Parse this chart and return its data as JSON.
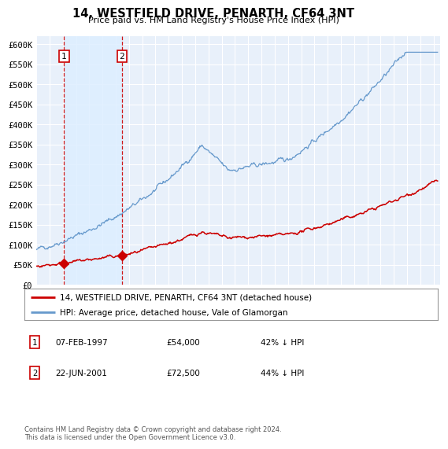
{
  "title": "14, WESTFIELD DRIVE, PENARTH, CF64 3NT",
  "subtitle": "Price paid vs. HM Land Registry's House Price Index (HPI)",
  "ylabel_ticks": [
    "£0",
    "£50K",
    "£100K",
    "£150K",
    "£200K",
    "£250K",
    "£300K",
    "£350K",
    "£400K",
    "£450K",
    "£500K",
    "£550K",
    "£600K"
  ],
  "ytick_values": [
    0,
    50000,
    100000,
    150000,
    200000,
    250000,
    300000,
    350000,
    400000,
    450000,
    500000,
    550000,
    600000
  ],
  "xmin": 1995.0,
  "xmax": 2025.5,
  "ymin": 0,
  "ymax": 620000,
  "sale1_date": 1997.1,
  "sale1_price": 54000,
  "sale1_label": "1",
  "sale2_date": 2001.47,
  "sale2_price": 72500,
  "sale2_label": "2",
  "legend_red": "14, WESTFIELD DRIVE, PENARTH, CF64 3NT (detached house)",
  "legend_blue": "HPI: Average price, detached house, Vale of Glamorgan",
  "table_row1": [
    "1",
    "07-FEB-1997",
    "£54,000",
    "42% ↓ HPI"
  ],
  "table_row2": [
    "2",
    "22-JUN-2001",
    "£72,500",
    "44% ↓ HPI"
  ],
  "footer": "Contains HM Land Registry data © Crown copyright and database right 2024.\nThis data is licensed under the Open Government Licence v3.0.",
  "red_color": "#cc0000",
  "blue_color": "#6699cc",
  "shade_color": "#ddeeff",
  "bg_color": "#e8f0fa",
  "grid_color": "#ffffff"
}
